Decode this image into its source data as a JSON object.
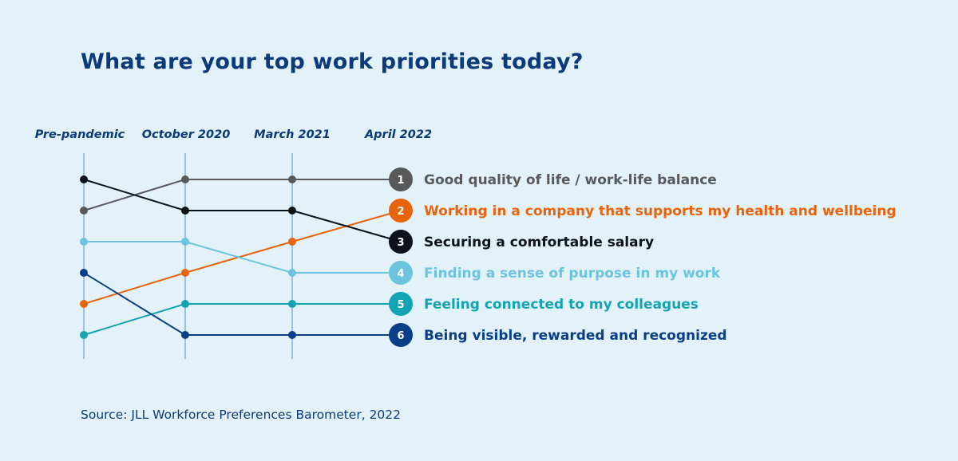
{
  "title": "What are your top work priorities today?",
  "source": "Source: JLL Workforce Preferences Barometer, 2022",
  "chart_data": {
    "type": "line",
    "chart_subtype": "bump (rank) chart",
    "x": [
      "Pre-pandemic",
      "October 2020",
      "March 2021",
      "April 2022"
    ],
    "y_axis": "rank (1 = top)",
    "y_reversed": true,
    "ylim": [
      1,
      6
    ],
    "grid": "vertical lines at each period",
    "series": [
      {
        "name": "Good quality of life / work-life balance",
        "badge": "1",
        "color": "#58595b",
        "values": [
          2,
          1,
          1,
          1
        ]
      },
      {
        "name": "Working in a company that supports my health and wellbeing",
        "badge": "2",
        "color": "#e8640c",
        "values": [
          5,
          4,
          3,
          2
        ]
      },
      {
        "name": "Securing a comfortable salary",
        "badge": "3",
        "color": "#0b1219",
        "values": [
          1,
          2,
          2,
          3
        ]
      },
      {
        "name": "Finding a sense of purpose in my work",
        "badge": "4",
        "color": "#6cc3de",
        "values": [
          3,
          3,
          4,
          4
        ]
      },
      {
        "name": "Feeling connected to my colleagues",
        "badge": "5",
        "color": "#14a3b3",
        "values": [
          6,
          5,
          5,
          5
        ]
      },
      {
        "name": "Being visible, rewarded and recognized",
        "badge": "6",
        "color": "#0a3f87",
        "values": [
          4,
          6,
          6,
          6
        ]
      }
    ]
  }
}
